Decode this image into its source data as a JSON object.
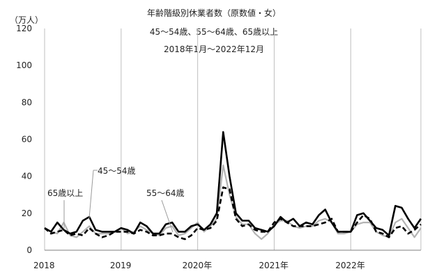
{
  "chart_data": {
    "type": "line",
    "title": "年齢階級別休業者数（原数値・女）",
    "subtitle": "45～54歳、55～64歳、65歳以上",
    "period": "2018年1月～2022年12月",
    "ylabel": "（万人）",
    "ylim": [
      0,
      120
    ],
    "yticks": [
      0,
      20,
      40,
      60,
      80,
      100,
      120
    ],
    "xticks": [
      {
        "label": "2018",
        "index": 0
      },
      {
        "label": "2019",
        "index": 12
      },
      {
        "label": "2020年",
        "index": 24
      },
      {
        "label": "2021年",
        "index": 36
      },
      {
        "label": "2022年",
        "index": 48
      }
    ],
    "grid": "vertical-year",
    "series": [
      {
        "name": "45～54歳",
        "style": "solid",
        "color": "#000000",
        "values": [
          12,
          10,
          15,
          11,
          9,
          10,
          16,
          18,
          11,
          10,
          10,
          10,
          12,
          11,
          9,
          15,
          13,
          9,
          9,
          14,
          15,
          10,
          10,
          13,
          14,
          11,
          14,
          20,
          64,
          40,
          20,
          16,
          16,
          12,
          11,
          10,
          13,
          18,
          15,
          17,
          13,
          15,
          14,
          19,
          22,
          15,
          10,
          10,
          10,
          19,
          20,
          16,
          12,
          11,
          8,
          24,
          23,
          17,
          12,
          17
        ]
      },
      {
        "name": "55～64歳",
        "style": "solid",
        "color": "#b3b3b3",
        "values": [
          12,
          10,
          9,
          15,
          8,
          7,
          10,
          13,
          9,
          9,
          9,
          10,
          12,
          9,
          10,
          13,
          11,
          9,
          8,
          12,
          13,
          8,
          9,
          12,
          15,
          10,
          13,
          17,
          46,
          30,
          18,
          14,
          14,
          9,
          6,
          9,
          14,
          16,
          16,
          13,
          12,
          13,
          13,
          16,
          17,
          15,
          9,
          9,
          10,
          14,
          15,
          15,
          10,
          8,
          7,
          15,
          17,
          12,
          7,
          12
        ]
      },
      {
        "name": "65歳以上",
        "style": "dashed",
        "color": "#000000",
        "values": [
          12,
          9,
          10,
          11,
          8,
          9,
          8,
          12,
          9,
          7,
          8,
          10,
          10,
          10,
          9,
          11,
          10,
          8,
          8,
          9,
          9,
          7,
          6,
          8,
          12,
          11,
          12,
          16,
          34,
          33,
          17,
          13,
          14,
          11,
          10,
          10,
          15,
          17,
          15,
          13,
          13,
          13,
          13,
          14,
          15,
          17,
          10,
          10,
          10,
          15,
          19,
          17,
          10,
          9,
          7,
          12,
          13,
          9,
          11,
          14
        ]
      }
    ],
    "annotations": [
      {
        "text": "45～54歳",
        "series": "45～54歳"
      },
      {
        "text": "65歳以上",
        "series": "65歳以上"
      },
      {
        "text": "55～64歳",
        "series": "55～64歳"
      }
    ]
  }
}
